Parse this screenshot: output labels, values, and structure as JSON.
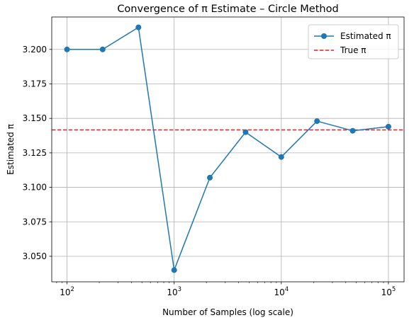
{
  "chart_data": {
    "type": "line",
    "title": "Convergence of π Estimate – Circle Method",
    "xlabel": "Number of Samples (log scale)",
    "ylabel": "Estimated π",
    "xscale": "log",
    "xlim": [
      72,
      140000
    ],
    "ylim": [
      3.0315,
      3.2235
    ],
    "grid": true,
    "legend_position": "top-right",
    "x_ticks": [
      {
        "value": 100,
        "base": "10",
        "exp": "2"
      },
      {
        "value": 1000,
        "base": "10",
        "exp": "3"
      },
      {
        "value": 10000,
        "base": "10",
        "exp": "4"
      },
      {
        "value": 100000,
        "base": "10",
        "exp": "5"
      }
    ],
    "y_ticks": [
      {
        "value": 3.05,
        "label": "3.050"
      },
      {
        "value": 3.075,
        "label": "3.075"
      },
      {
        "value": 3.1,
        "label": "3.100"
      },
      {
        "value": 3.125,
        "label": "3.125"
      },
      {
        "value": 3.15,
        "label": "3.150"
      },
      {
        "value": 3.175,
        "label": "3.175"
      },
      {
        "value": 3.2,
        "label": "3.200"
      }
    ],
    "series": [
      {
        "name": "Estimated π",
        "color": "#1f77b4",
        "style": "line-marker",
        "x": [
          100,
          215,
          464,
          1000,
          2154,
          4641,
          10000,
          21544,
          46416,
          100000
        ],
        "y": [
          3.2,
          3.2,
          3.216,
          3.04,
          3.107,
          3.14,
          3.122,
          3.148,
          3.141,
          3.144
        ]
      }
    ],
    "reference_lines": [
      {
        "name": "True π",
        "y": 3.14159,
        "color": "#d62728",
        "style": "dashed"
      }
    ]
  }
}
